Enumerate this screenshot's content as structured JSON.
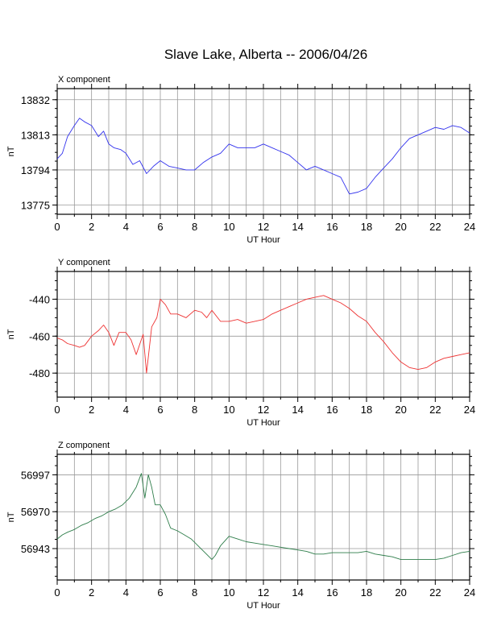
{
  "page": {
    "title": "Slave Lake, Alberta -- 2006/04/26"
  },
  "chart_data": [
    {
      "type": "line",
      "title": "X component",
      "xlabel": "UT Hour",
      "ylabel": "nT",
      "xlim": [
        0,
        24
      ],
      "ylim": [
        13770,
        13838
      ],
      "xticks": [
        0,
        2,
        4,
        6,
        8,
        10,
        12,
        14,
        16,
        18,
        20,
        22,
        24
      ],
      "yticks": [
        13775,
        13794,
        13813,
        13832
      ],
      "grid": true,
      "series": [
        {
          "color": "#3333ee",
          "x": [
            0,
            0.3,
            0.6,
            1.0,
            1.3,
            1.6,
            2.0,
            2.4,
            2.7,
            3.0,
            3.3,
            3.7,
            4.0,
            4.4,
            4.8,
            5.2,
            5.6,
            6.0,
            6.5,
            7.0,
            7.5,
            8.0,
            8.5,
            9.0,
            9.5,
            10.0,
            10.5,
            11.0,
            11.5,
            12.0,
            12.5,
            13.0,
            13.5,
            14.0,
            14.5,
            15.0,
            15.5,
            16.0,
            16.5,
            17.0,
            17.5,
            18.0,
            18.5,
            19.0,
            19.5,
            20.0,
            20.5,
            21.0,
            21.5,
            22.0,
            22.5,
            23.0,
            23.5,
            24.0
          ],
          "y": [
            13800,
            13803,
            13812,
            13818,
            13822,
            13820,
            13818,
            13812,
            13815,
            13808,
            13806,
            13805,
            13803,
            13797,
            13799,
            13792,
            13796,
            13799,
            13796,
            13795,
            13794,
            13794,
            13798,
            13801,
            13803,
            13808,
            13806,
            13806,
            13806,
            13808,
            13806,
            13804,
            13802,
            13798,
            13794,
            13796,
            13794,
            13792,
            13790,
            13781,
            13782,
            13784,
            13790,
            13795,
            13800,
            13806,
            13811,
            13813,
            13815,
            13817,
            13816,
            13818,
            13817,
            13814
          ]
        }
      ]
    },
    {
      "type": "line",
      "title": "Y component",
      "xlabel": "UT Hour",
      "ylabel": "nT",
      "xlim": [
        0,
        24
      ],
      "ylim": [
        -493,
        -425
      ],
      "xticks": [
        0,
        2,
        4,
        6,
        8,
        10,
        12,
        14,
        16,
        18,
        20,
        22,
        24
      ],
      "yticks": [
        -480,
        -460,
        -440
      ],
      "grid": true,
      "series": [
        {
          "color": "#ee3333",
          "x": [
            0,
            0.3,
            0.6,
            1.0,
            1.3,
            1.6,
            2.0,
            2.4,
            2.7,
            3.0,
            3.3,
            3.6,
            4.0,
            4.3,
            4.6,
            5.0,
            5.2,
            5.5,
            5.8,
            6.0,
            6.3,
            6.6,
            7.0,
            7.5,
            8.0,
            8.4,
            8.7,
            9.0,
            9.5,
            10.0,
            10.5,
            11.0,
            11.5,
            12.0,
            12.5,
            13.0,
            13.5,
            14.0,
            14.5,
            15.0,
            15.5,
            16.0,
            16.5,
            17.0,
            17.5,
            18.0,
            18.5,
            19.0,
            19.5,
            20.0,
            20.5,
            21.0,
            21.5,
            22.0,
            22.5,
            23.0,
            23.5,
            24.0
          ],
          "y": [
            -461,
            -462,
            -464,
            -465,
            -466,
            -465,
            -460,
            -457,
            -454,
            -458,
            -465,
            -458,
            -458,
            -462,
            -470,
            -459,
            -480,
            -455,
            -450,
            -440,
            -443,
            -448,
            -448,
            -450,
            -446,
            -447,
            -450,
            -446,
            -452,
            -452,
            -451,
            -453,
            -452,
            -451,
            -448,
            -446,
            -444,
            -442,
            -440,
            -439,
            -438,
            -440,
            -442,
            -445,
            -449,
            -452,
            -458,
            -463,
            -469,
            -474,
            -477,
            -478,
            -477,
            -474,
            -472,
            -471,
            -470,
            -469
          ]
        }
      ]
    },
    {
      "type": "line",
      "title": "Z component",
      "xlabel": "UT Hour",
      "ylabel": "nT",
      "xlim": [
        0,
        24
      ],
      "ylim": [
        56920,
        57012
      ],
      "xticks": [
        0,
        2,
        4,
        6,
        8,
        10,
        12,
        14,
        16,
        18,
        20,
        22,
        24
      ],
      "yticks": [
        56943,
        56970,
        56997
      ],
      "grid": true,
      "series": [
        {
          "color": "#2e7d4a",
          "x": [
            0,
            0.3,
            0.6,
            1.0,
            1.4,
            1.8,
            2.2,
            2.6,
            3.0,
            3.4,
            3.8,
            4.2,
            4.6,
            4.9,
            5.1,
            5.3,
            5.5,
            5.7,
            6.0,
            6.3,
            6.6,
            7.0,
            7.4,
            7.8,
            8.2,
            8.6,
            9.0,
            9.2,
            9.5,
            10.0,
            10.5,
            11.0,
            11.5,
            12.0,
            12.5,
            13.0,
            13.5,
            14.0,
            14.5,
            15.0,
            15.5,
            16.0,
            16.5,
            17.0,
            17.5,
            18.0,
            18.5,
            19.0,
            19.5,
            20.0,
            20.5,
            21.0,
            21.5,
            22.0,
            22.5,
            23.0,
            23.5,
            24.0
          ],
          "y": [
            56950,
            56953,
            56955,
            56957,
            56960,
            56962,
            56965,
            56967,
            56970,
            56972,
            56975,
            56980,
            56988,
            56998,
            56980,
            56997,
            56988,
            56975,
            56975,
            56968,
            56958,
            56956,
            56953,
            56950,
            56945,
            56940,
            56935,
            56938,
            56945,
            56952,
            56950,
            56948,
            56947,
            56946,
            56945,
            56944,
            56943,
            56942,
            56941,
            56939,
            56939,
            56940,
            56940,
            56940,
            56940,
            56941,
            56939,
            56938,
            56937,
            56935,
            56935,
            56935,
            56935,
            56935,
            56936,
            56938,
            56940,
            56941
          ]
        }
      ]
    }
  ]
}
